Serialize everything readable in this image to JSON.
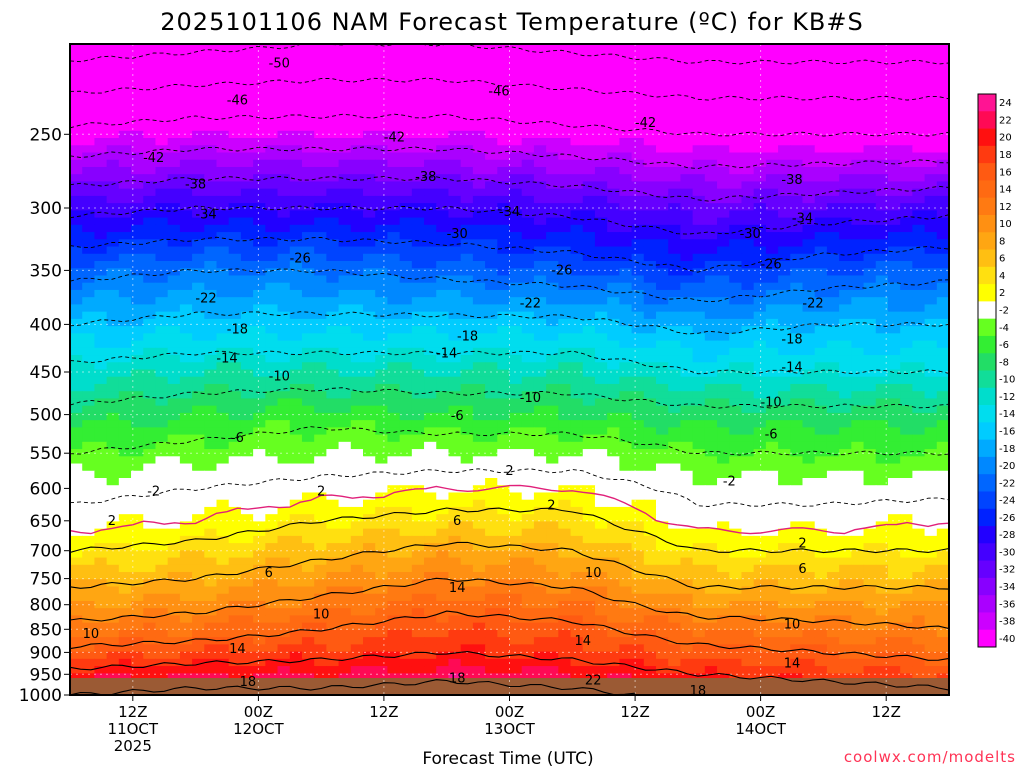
{
  "chart_data": {
    "type": "heatmap",
    "title": "2025101106 NAM Forecast Temperature (ºC) for KB#S",
    "xlabel": "Forecast Time (UTC)",
    "credit": "coolwx.com/modelts",
    "y_scale": "log-pressure",
    "ylim": [
      1000,
      200
    ],
    "grid": true,
    "xlim_hours": [
      0,
      84
    ],
    "yticks": [
      250,
      300,
      350,
      400,
      450,
      500,
      550,
      600,
      650,
      700,
      750,
      800,
      850,
      900,
      950,
      1000
    ],
    "xticks": [
      {
        "hour": 6,
        "lines": [
          "12Z",
          "11OCT",
          "2025"
        ]
      },
      {
        "hour": 18,
        "lines": [
          "00Z",
          "12OCT"
        ]
      },
      {
        "hour": 30,
        "lines": [
          "12Z"
        ]
      },
      {
        "hour": 42,
        "lines": [
          "00Z",
          "13OCT"
        ]
      },
      {
        "hour": 54,
        "lines": [
          "12Z"
        ]
      },
      {
        "hour": 66,
        "lines": [
          "00Z",
          "14OCT"
        ]
      },
      {
        "hour": 78,
        "lines": [
          "12Z"
        ]
      }
    ],
    "colorbar": {
      "labels": [
        "24",
        "22",
        "20",
        "18",
        "16",
        "14",
        "12",
        "10",
        "8",
        "6",
        "4",
        "2",
        "-2",
        "-4",
        "-6",
        "-8",
        "-10",
        "-12",
        "-14",
        "-16",
        "-18",
        "-20",
        "-22",
        "-24",
        "-26",
        "-28",
        "-30",
        "-32",
        "-34",
        "-36",
        "-38",
        "-40"
      ],
      "colors": [
        "#ff1493",
        "#ff0a55",
        "#ff1010",
        "#ff3a10",
        "#ff5a12",
        "#ff6a12",
        "#ff7a12",
        "#ff9012",
        "#ffa612",
        "#ffbf12",
        "#ffe010",
        "#ffff00",
        "#ffffff",
        "#66ff20",
        "#33ee33",
        "#22dd66",
        "#11dd99",
        "#00ddcc",
        "#00ddee",
        "#00ccff",
        "#00aaff",
        "#0088ff",
        "#0066ff",
        "#0044ff",
        "#0022ff",
        "#2200ff",
        "#4400ff",
        "#6600ff",
        "#8800ff",
        "#aa00ff",
        "#cc00ff",
        "#ff00ff"
      ]
    },
    "temperature_profile": {
      "pressures_hPa": [
        1000,
        950,
        900,
        850,
        800,
        750,
        700,
        650,
        600,
        550,
        500,
        450,
        400,
        350,
        300,
        250,
        200
      ],
      "times_hours": [
        0,
        12,
        24,
        36,
        48,
        60,
        72,
        84
      ],
      "temps_c": [
        [
          22,
          23,
          23,
          24,
          23,
          21,
          20,
          19
        ],
        [
          19,
          20,
          20,
          21,
          20,
          18,
          17,
          16
        ],
        [
          15,
          16,
          17,
          18,
          17,
          15,
          14,
          13
        ],
        [
          11,
          12,
          14,
          16,
          15,
          12,
          11,
          10
        ],
        [
          8,
          9,
          11,
          13,
          12,
          8,
          8,
          8
        ],
        [
          5,
          6,
          8,
          10,
          9,
          5,
          5,
          5
        ],
        [
          2,
          3,
          5,
          7,
          6,
          2,
          2,
          2
        ],
        [
          -1,
          0,
          2,
          3,
          3,
          -1,
          -1,
          0
        ],
        [
          -3,
          -2,
          -1,
          0,
          0,
          -3,
          -3,
          -3
        ],
        [
          -6,
          -5,
          -4,
          -4,
          -4,
          -6,
          -6,
          -6
        ],
        [
          -9,
          -8,
          -7,
          -8,
          -8,
          -9,
          -9,
          -9
        ],
        [
          -13,
          -12,
          -12,
          -12,
          -12,
          -14,
          -14,
          -14
        ],
        [
          -18,
          -17,
          -17,
          -17,
          -17,
          -19,
          -18,
          -18
        ],
        [
          -23,
          -22,
          -22,
          -23,
          -24,
          -26,
          -24,
          -23
        ],
        [
          -31,
          -30,
          -30,
          -30,
          -31,
          -33,
          -32,
          -31
        ],
        [
          -41,
          -40,
          -40,
          -40,
          -41,
          -42,
          -42,
          -42
        ],
        [
          -52,
          -51,
          -50,
          -50,
          -51,
          -52,
          -52,
          -52
        ]
      ]
    },
    "contour_labels": [
      {
        "text": "-50",
        "hour": 20,
        "p": 210
      },
      {
        "text": "-46",
        "hour": 16,
        "p": 230
      },
      {
        "text": "-46",
        "hour": 41,
        "p": 225
      },
      {
        "text": "-42",
        "hour": 8,
        "p": 265
      },
      {
        "text": "-42",
        "hour": 31,
        "p": 252
      },
      {
        "text": "-42",
        "hour": 55,
        "p": 243
      },
      {
        "text": "-38",
        "hour": 12,
        "p": 283
      },
      {
        "text": "-38",
        "hour": 34,
        "p": 278
      },
      {
        "text": "-38",
        "hour": 69,
        "p": 280
      },
      {
        "text": "-34",
        "hour": 13,
        "p": 305
      },
      {
        "text": "-34",
        "hour": 42,
        "p": 303
      },
      {
        "text": "-34",
        "hour": 70,
        "p": 308
      },
      {
        "text": "-30",
        "hour": 37,
        "p": 320
      },
      {
        "text": "-30",
        "hour": 65,
        "p": 320
      },
      {
        "text": "-26",
        "hour": 22,
        "p": 340
      },
      {
        "text": "-26",
        "hour": 47,
        "p": 350
      },
      {
        "text": "-26",
        "hour": 67,
        "p": 345
      },
      {
        "text": "-22",
        "hour": 13,
        "p": 375
      },
      {
        "text": "-22",
        "hour": 44,
        "p": 380
      },
      {
        "text": "-22",
        "hour": 71,
        "p": 380
      },
      {
        "text": "-18",
        "hour": 16,
        "p": 405
      },
      {
        "text": "-18",
        "hour": 38,
        "p": 412
      },
      {
        "text": "-18",
        "hour": 69,
        "p": 415
      },
      {
        "text": "-14",
        "hour": 15,
        "p": 435
      },
      {
        "text": "-14",
        "hour": 36,
        "p": 430
      },
      {
        "text": "-14",
        "hour": 69,
        "p": 445
      },
      {
        "text": "-10",
        "hour": 20,
        "p": 455
      },
      {
        "text": "-10",
        "hour": 44,
        "p": 480
      },
      {
        "text": "-10",
        "hour": 67,
        "p": 485
      },
      {
        "text": "-6",
        "hour": 16,
        "p": 530
      },
      {
        "text": "-6",
        "hour": 37,
        "p": 502
      },
      {
        "text": "-6",
        "hour": 67,
        "p": 525
      },
      {
        "text": "-2",
        "hour": 8,
        "p": 605
      },
      {
        "text": "-2",
        "hour": 63,
        "p": 590
      },
      {
        "text": "2",
        "hour": 42,
        "p": 575
      },
      {
        "text": "2",
        "hour": 4,
        "p": 650
      },
      {
        "text": "2",
        "hour": 24,
        "p": 605
      },
      {
        "text": "2",
        "hour": 46,
        "p": 626
      },
      {
        "text": "2",
        "hour": 70,
        "p": 688
      },
      {
        "text": "6",
        "hour": 37,
        "p": 650
      },
      {
        "text": "6",
        "hour": 19,
        "p": 740
      },
      {
        "text": "6",
        "hour": 70,
        "p": 732
      },
      {
        "text": "10",
        "hour": 50,
        "p": 740
      },
      {
        "text": "10",
        "hour": 24,
        "p": 820
      },
      {
        "text": "10",
        "hour": 2,
        "p": 860
      },
      {
        "text": "10",
        "hour": 69,
        "p": 840
      },
      {
        "text": "14",
        "hour": 37,
        "p": 768
      },
      {
        "text": "14",
        "hour": 16,
        "p": 893
      },
      {
        "text": "14",
        "hour": 49,
        "p": 875
      },
      {
        "text": "14",
        "hour": 69,
        "p": 925
      },
      {
        "text": "18",
        "hour": 17,
        "p": 968
      },
      {
        "text": "18",
        "hour": 37,
        "p": 960
      },
      {
        "text": "18",
        "hour": 60,
        "p": 990
      },
      {
        "text": "22",
        "hour": 50,
        "p": 965
      }
    ]
  }
}
